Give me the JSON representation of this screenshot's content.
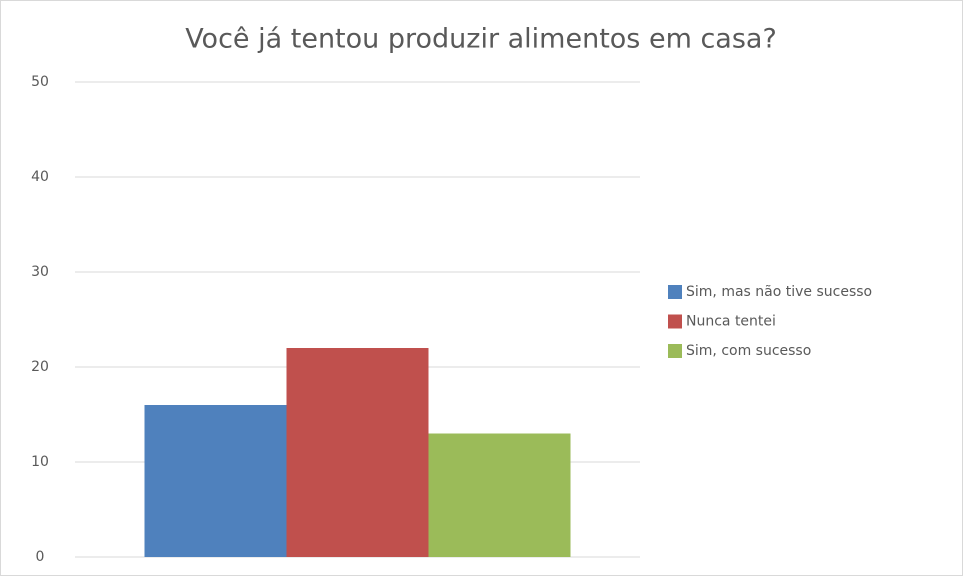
{
  "chart_data": {
    "type": "bar",
    "title": "Você já tentou produzir alimentos em casa?",
    "categories": [
      null
    ],
    "series": [
      {
        "name": "Sim, mas não tive sucesso",
        "color": "#4f81bd",
        "values": [
          16
        ]
      },
      {
        "name": "Nunca tentei",
        "color": "#c0504d",
        "values": [
          22
        ]
      },
      {
        "name": "Sim, com sucesso",
        "color": "#9bbb59",
        "values": [
          13
        ]
      }
    ],
    "ylim": [
      0,
      50
    ],
    "yticks": [
      0,
      10,
      20,
      30,
      40,
      50
    ],
    "grid": true,
    "legend": "right"
  }
}
